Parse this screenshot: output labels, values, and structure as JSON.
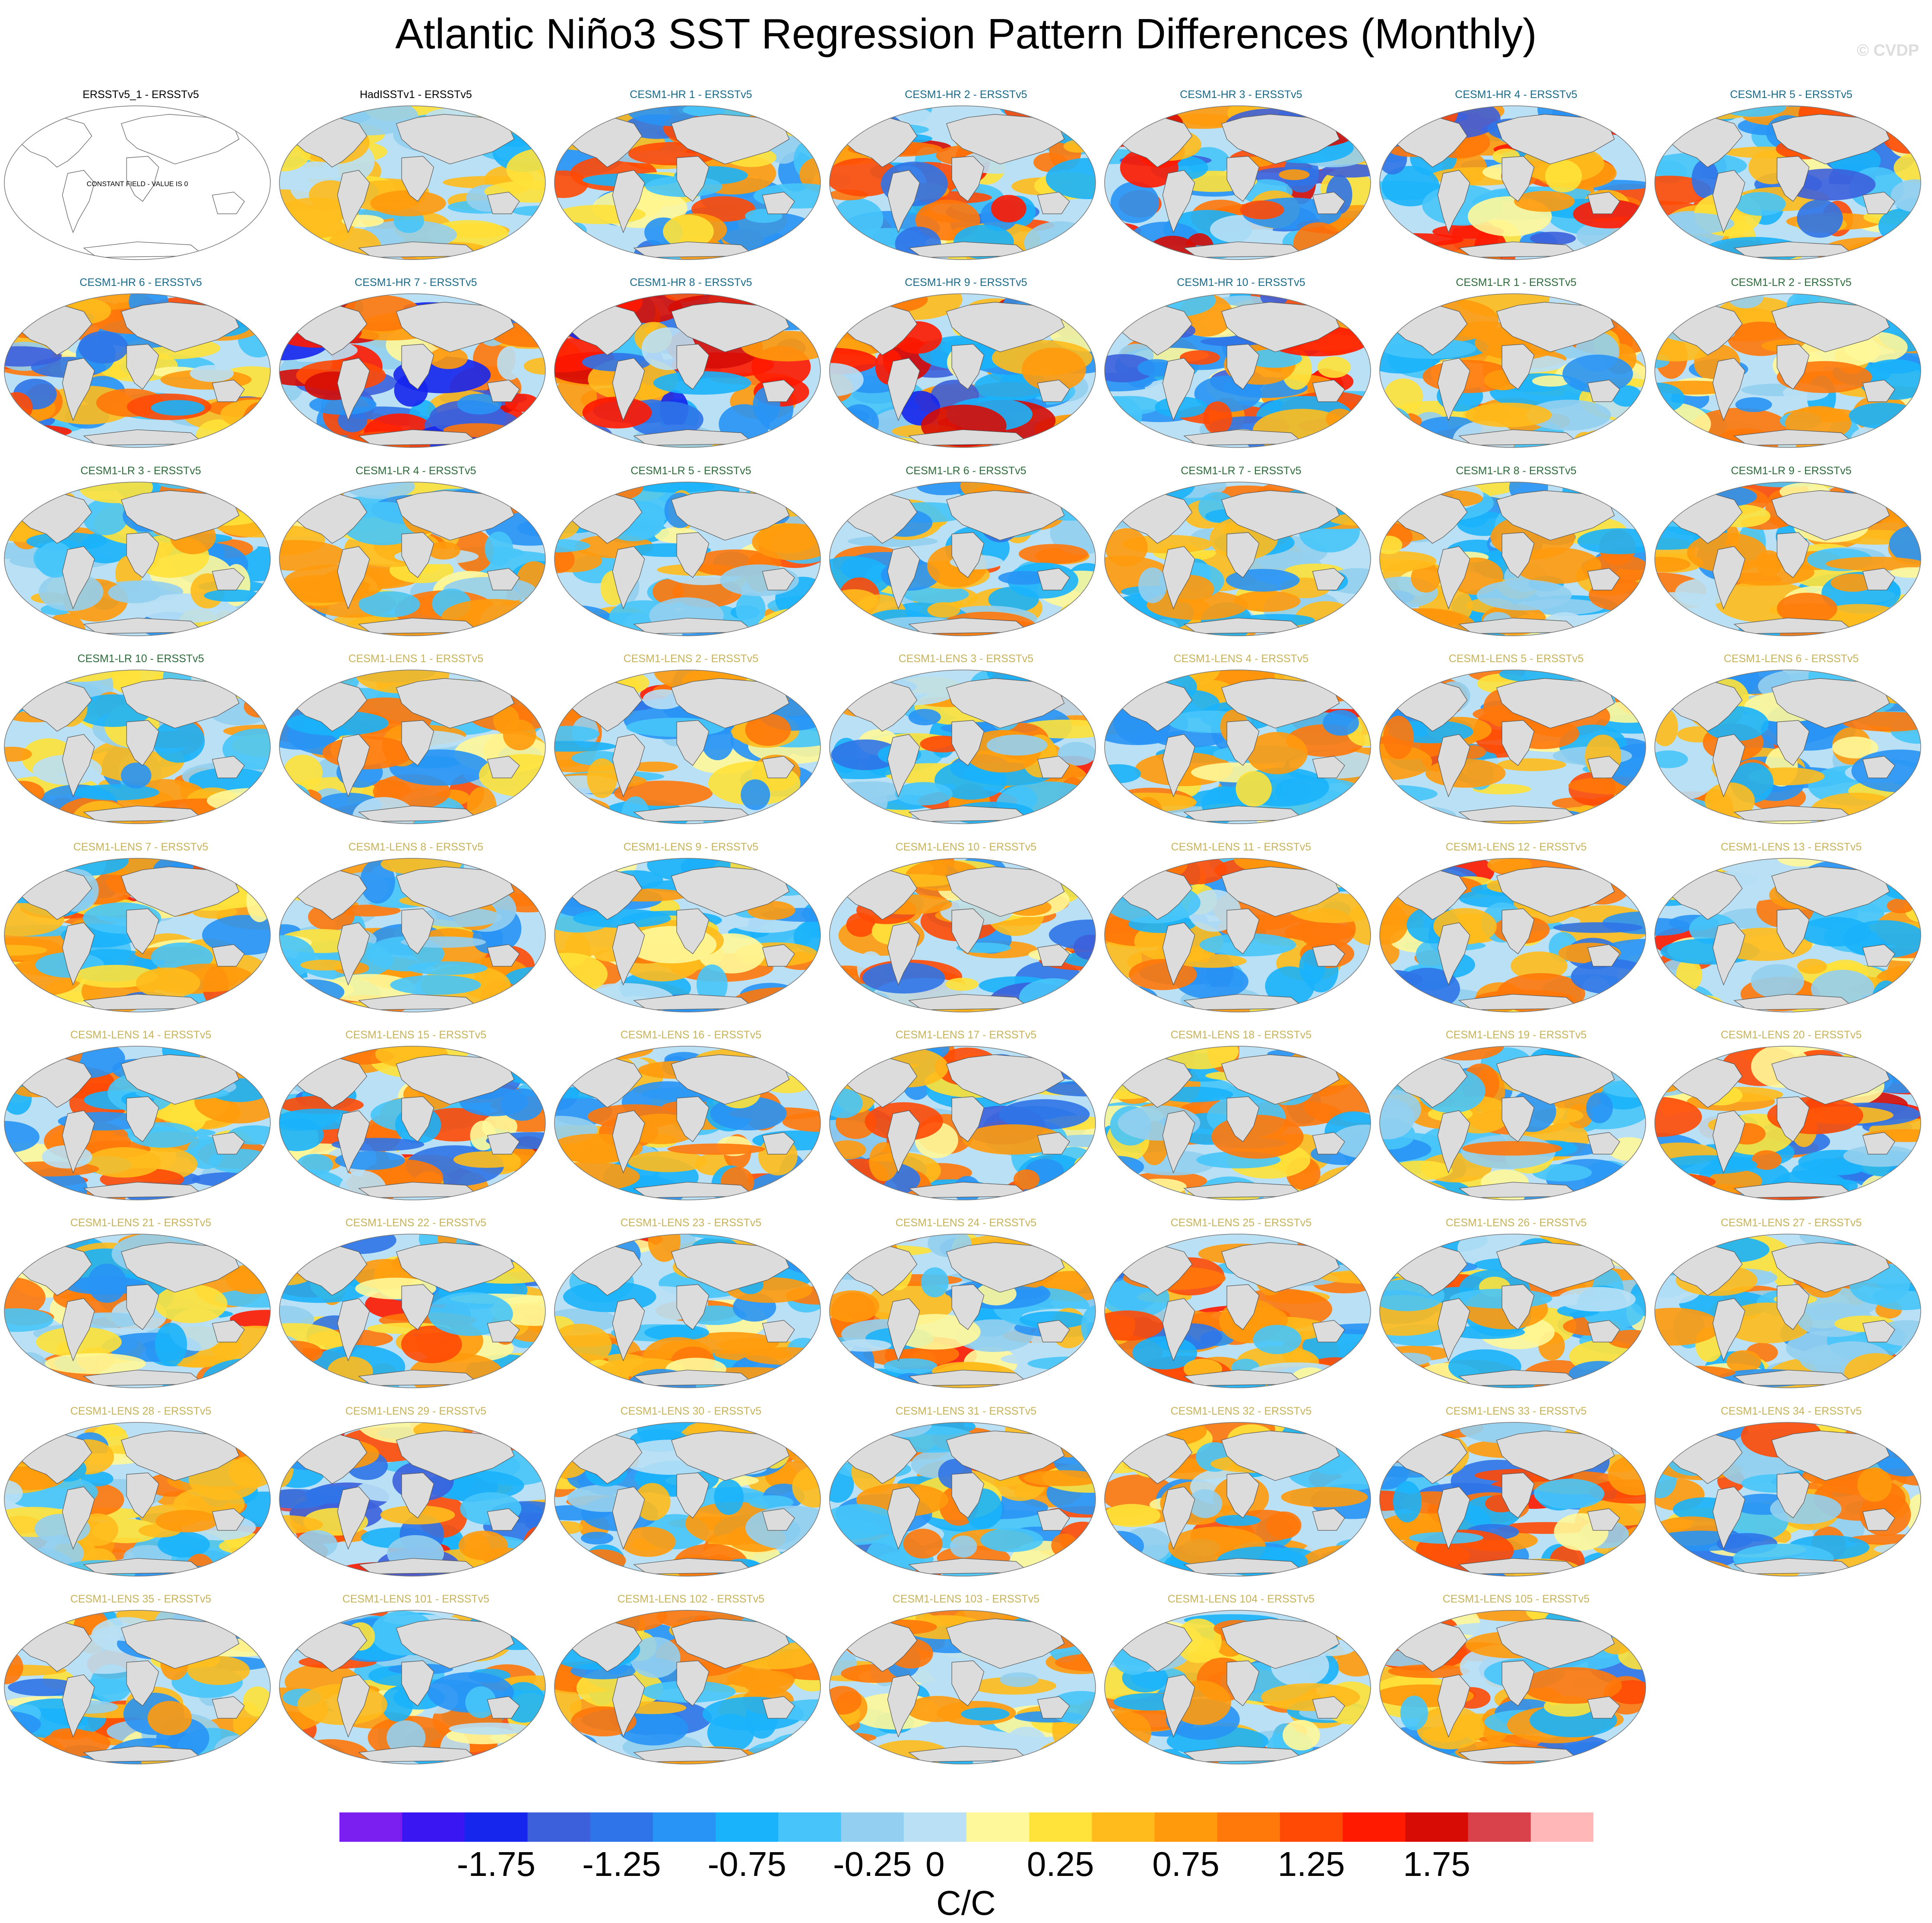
{
  "figure": {
    "title": "Atlantic Niño3 SST Regression Pattern Differences (Monthly)",
    "credit": "© CVDP",
    "units": "C/C"
  },
  "colorbar": {
    "colors": [
      "#7b1ff0",
      "#3a17f2",
      "#1626ec",
      "#3c60dc",
      "#2f74e8",
      "#2894f5",
      "#19b3fb",
      "#47c5fa",
      "#93cff0",
      "#b9e0f5",
      "#fff89a",
      "#ffe23a",
      "#ffbb1c",
      "#ff9a0c",
      "#ff780a",
      "#ff4a05",
      "#ff1a00",
      "#d60c05",
      "#d9424a",
      "#ffb7b7"
    ],
    "tick_labels": [
      "-1.75",
      "-1.25",
      "-0.75",
      "-0.25",
      "0",
      "0.25",
      "0.75",
      "1.25",
      "1.75"
    ]
  },
  "colors": {
    "land": "#dcdcdc",
    "title_obs": "#000000",
    "title_hr": "#1a6a8a",
    "title_lr": "#2e6b3a",
    "title_lens": "#c8b35a"
  },
  "constant_field_label": "CONSTANT FIELD - VALUE IS 0",
  "chart_data": {
    "type": "heatmap",
    "title": "Atlantic Niño3 SST Regression Pattern Differences (Monthly)",
    "colorbar_label": "C/C",
    "levels": [
      -2.0,
      -1.75,
      -1.5,
      -1.25,
      -1.0,
      -0.75,
      -0.5,
      -0.25,
      -0.1,
      0,
      0.1,
      0.25,
      0.5,
      0.75,
      1.0,
      1.25,
      1.5,
      1.75,
      2.0
    ],
    "panels": [
      {
        "label": "ERSSTv5_1 - ERSSTv5",
        "group": "obs",
        "constant": true,
        "amplitude": 0
      },
      {
        "label": "HadISSTv1 - ERSSTv5",
        "group": "obs",
        "amplitude": 0.25
      },
      {
        "label": "CESM1-HR 1 - ERSSTv5",
        "group": "hr",
        "amplitude": 0.55
      },
      {
        "label": "CESM1-HR 2 - ERSSTv5",
        "group": "hr",
        "amplitude": 0.6
      },
      {
        "label": "CESM1-HR 3 - ERSSTv5",
        "group": "hr",
        "amplitude": 0.75
      },
      {
        "label": "CESM1-HR 4 - ERSSTv5",
        "group": "hr",
        "amplitude": 0.65
      },
      {
        "label": "CESM1-HR 5 - ERSSTv5",
        "group": "hr",
        "amplitude": 0.6
      },
      {
        "label": "CESM1-HR 6 - ERSSTv5",
        "group": "hr",
        "amplitude": 0.6
      },
      {
        "label": "CESM1-HR 7 - ERSSTv5",
        "group": "hr",
        "amplitude": 0.8
      },
      {
        "label": "CESM1-HR 8 - ERSSTv5",
        "group": "hr",
        "amplitude": 0.8
      },
      {
        "label": "CESM1-HR 9 - ERSSTv5",
        "group": "hr",
        "amplitude": 0.75
      },
      {
        "label": "CESM1-HR 10 - ERSSTv5",
        "group": "hr",
        "amplitude": 0.7
      },
      {
        "label": "CESM1-LR 1 - ERSSTv5",
        "group": "lr",
        "amplitude": 0.4
      },
      {
        "label": "CESM1-LR 2 - ERSSTv5",
        "group": "lr",
        "amplitude": 0.45
      },
      {
        "label": "CESM1-LR 3 - ERSSTv5",
        "group": "lr",
        "amplitude": 0.4
      },
      {
        "label": "CESM1-LR 4 - ERSSTv5",
        "group": "lr",
        "amplitude": 0.4
      },
      {
        "label": "CESM1-LR 5 - ERSSTv5",
        "group": "lr",
        "amplitude": 0.4
      },
      {
        "label": "CESM1-LR 6 - ERSSTv5",
        "group": "lr",
        "amplitude": 0.5
      },
      {
        "label": "CESM1-LR 7 - ERSSTv5",
        "group": "lr",
        "amplitude": 0.4
      },
      {
        "label": "CESM1-LR 8 - ERSSTv5",
        "group": "lr",
        "amplitude": 0.45
      },
      {
        "label": "CESM1-LR 9 - ERSSTv5",
        "group": "lr",
        "amplitude": 0.45
      },
      {
        "label": "CESM1-LR 10 - ERSSTv5",
        "group": "lr",
        "amplitude": 0.4
      },
      {
        "label": "CESM1-LENS 1 - ERSSTv5",
        "group": "lens",
        "amplitude": 0.45
      },
      {
        "label": "CESM1-LENS 2 - ERSSTv5",
        "group": "lens",
        "amplitude": 0.5
      },
      {
        "label": "CESM1-LENS 3 - ERSSTv5",
        "group": "lens",
        "amplitude": 0.55
      },
      {
        "label": "CESM1-LENS 4 - ERSSTv5",
        "group": "lens",
        "amplitude": 0.45
      },
      {
        "label": "CESM1-LENS 5 - ERSSTv5",
        "group": "lens",
        "amplitude": 0.5
      },
      {
        "label": "CESM1-LENS 6 - ERSSTv5",
        "group": "lens",
        "amplitude": 0.45
      },
      {
        "label": "CESM1-LENS 7 - ERSSTv5",
        "group": "lens",
        "amplitude": 0.55
      },
      {
        "label": "CESM1-LENS 8 - ERSSTv5",
        "group": "lens",
        "amplitude": 0.45
      },
      {
        "label": "CESM1-LENS 9 - ERSSTv5",
        "group": "lens",
        "amplitude": 0.45
      },
      {
        "label": "CESM1-LENS 10 - ERSSTv5",
        "group": "lens",
        "amplitude": 0.6
      },
      {
        "label": "CESM1-LENS 11 - ERSSTv5",
        "group": "lens",
        "amplitude": 0.5
      },
      {
        "label": "CESM1-LENS 12 - ERSSTv5",
        "group": "lens",
        "amplitude": 0.5
      },
      {
        "label": "CESM1-LENS 13 - ERSSTv5",
        "group": "lens",
        "amplitude": 0.45
      },
      {
        "label": "CESM1-LENS 14 - ERSSTv5",
        "group": "lens",
        "amplitude": 0.5
      },
      {
        "label": "CESM1-LENS 15 - ERSSTv5",
        "group": "lens",
        "amplitude": 0.55
      },
      {
        "label": "CESM1-LENS 16 - ERSSTv5",
        "group": "lens",
        "amplitude": 0.45
      },
      {
        "label": "CESM1-LENS 17 - ERSSTv5",
        "group": "lens",
        "amplitude": 0.6
      },
      {
        "label": "CESM1-LENS 18 - ERSSTv5",
        "group": "lens",
        "amplitude": 0.45
      },
      {
        "label": "CESM1-LENS 19 - ERSSTv5",
        "group": "lens",
        "amplitude": 0.45
      },
      {
        "label": "CESM1-LENS 20 - ERSSTv5",
        "group": "lens",
        "amplitude": 0.55
      },
      {
        "label": "CESM1-LENS 21 - ERSSTv5",
        "group": "lens",
        "amplitude": 0.45
      },
      {
        "label": "CESM1-LENS 22 - ERSSTv5",
        "group": "lens",
        "amplitude": 0.5
      },
      {
        "label": "CESM1-LENS 23 - ERSSTv5",
        "group": "lens",
        "amplitude": 0.45
      },
      {
        "label": "CESM1-LENS 24 - ERSSTv5",
        "group": "lens",
        "amplitude": 0.45
      },
      {
        "label": "CESM1-LENS 25 - ERSSTv5",
        "group": "lens",
        "amplitude": 0.5
      },
      {
        "label": "CESM1-LENS 26 - ERSSTv5",
        "group": "lens",
        "amplitude": 0.45
      },
      {
        "label": "CESM1-LENS 27 - ERSSTv5",
        "group": "lens",
        "amplitude": 0.4
      },
      {
        "label": "CESM1-LENS 28 - ERSSTv5",
        "group": "lens",
        "amplitude": 0.45
      },
      {
        "label": "CESM1-LENS 29 - ERSSTv5",
        "group": "lens",
        "amplitude": 0.7
      },
      {
        "label": "CESM1-LENS 30 - ERSSTv5",
        "group": "lens",
        "amplitude": 0.45
      },
      {
        "label": "CESM1-LENS 31 - ERSSTv5",
        "group": "lens",
        "amplitude": 0.5
      },
      {
        "label": "CESM1-LENS 32 - ERSSTv5",
        "group": "lens",
        "amplitude": 0.45
      },
      {
        "label": "CESM1-LENS 33 - ERSSTv5",
        "group": "lens",
        "amplitude": 0.55
      },
      {
        "label": "CESM1-LENS 34 - ERSSTv5",
        "group": "lens",
        "amplitude": 0.5
      },
      {
        "label": "CESM1-LENS 35 - ERSSTv5",
        "group": "lens",
        "amplitude": 0.5
      },
      {
        "label": "CESM1-LENS 101 - ERSSTv5",
        "group": "lens",
        "amplitude": 0.5
      },
      {
        "label": "CESM1-LENS 102 - ERSSTv5",
        "group": "lens",
        "amplitude": 0.5
      },
      {
        "label": "CESM1-LENS 103 - ERSSTv5",
        "group": "lens",
        "amplitude": 0.45
      },
      {
        "label": "CESM1-LENS 104 - ERSSTv5",
        "group": "lens",
        "amplitude": 0.45
      },
      {
        "label": "CESM1-LENS 105 - ERSSTv5",
        "group": "lens",
        "amplitude": 0.5
      }
    ]
  }
}
